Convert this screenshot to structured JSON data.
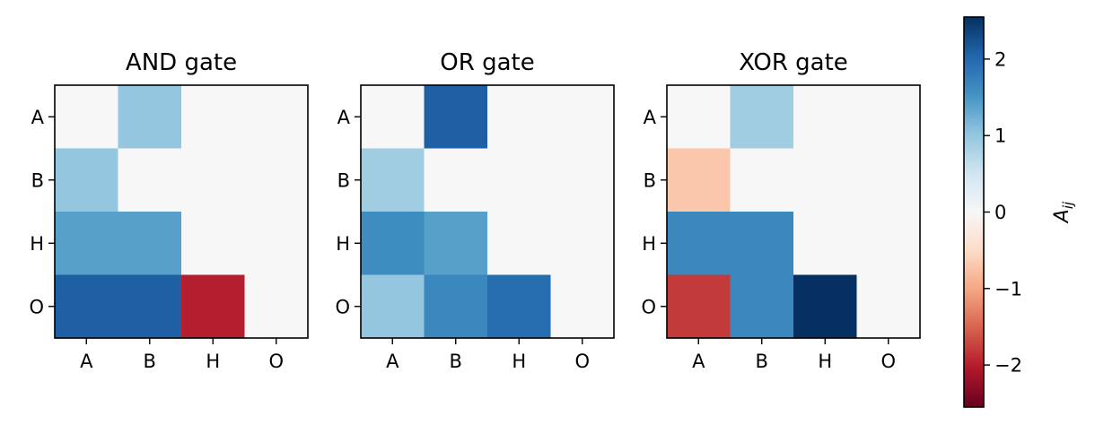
{
  "chart_data": {
    "type": "heatmap",
    "row_labels": [
      "A",
      "B",
      "H",
      "O"
    ],
    "col_labels": [
      "A",
      "B",
      "H",
      "O"
    ],
    "colormap": "RdBu",
    "clim": [
      -2.55,
      2.55
    ],
    "panels": [
      {
        "title": "AND gate",
        "values": [
          [
            0,
            1.0,
            0,
            0
          ],
          [
            1.0,
            0,
            0,
            0
          ],
          [
            1.4,
            1.4,
            0,
            0
          ],
          [
            2.1,
            2.1,
            -2.0,
            0
          ]
        ]
      },
      {
        "title": "OR gate",
        "values": [
          [
            0,
            2.1,
            0,
            0
          ],
          [
            0.9,
            0,
            0,
            0
          ],
          [
            1.6,
            1.4,
            0,
            0
          ],
          [
            1.0,
            1.65,
            1.95,
            0
          ]
        ]
      },
      {
        "title": "XOR gate",
        "values": [
          [
            0,
            0.9,
            0,
            0
          ],
          [
            -0.7,
            0,
            0,
            0
          ],
          [
            1.65,
            1.65,
            0,
            0
          ],
          [
            -1.8,
            1.65,
            2.55,
            0
          ]
        ]
      }
    ],
    "colorbar": {
      "label": "A",
      "label_subscript": "ij",
      "ticks": [
        2,
        1,
        0,
        -1,
        -2
      ],
      "tick_labels": [
        "2",
        "1",
        "0",
        "−1",
        "−2"
      ]
    }
  }
}
